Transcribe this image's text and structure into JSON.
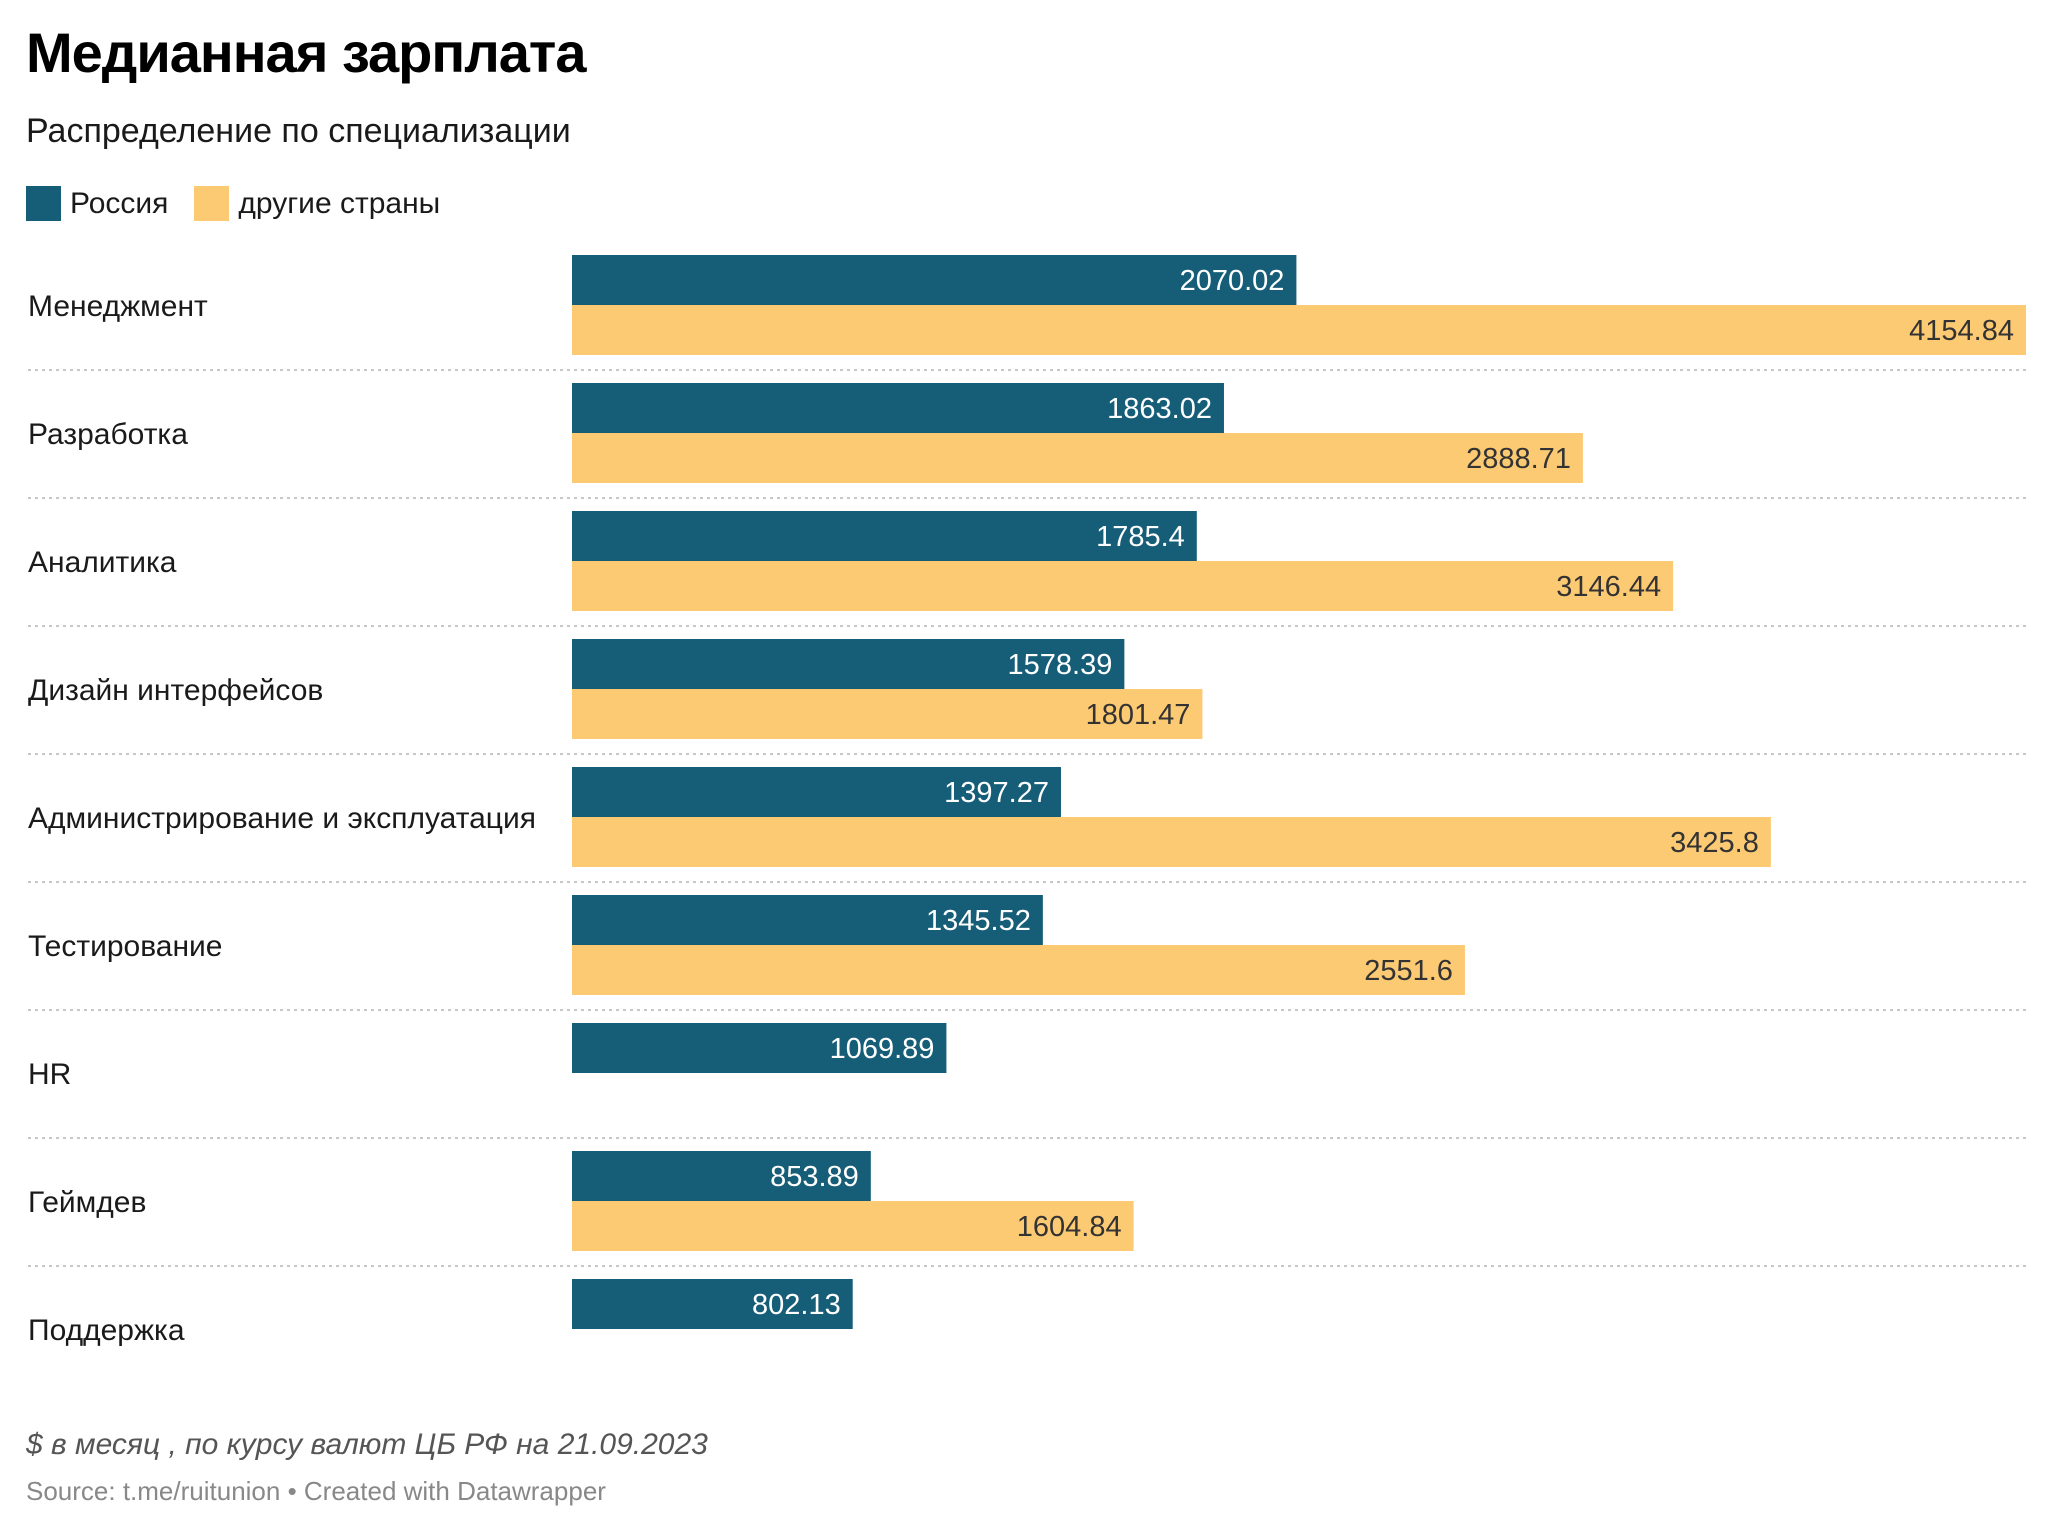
{
  "chart_data": {
    "type": "bar",
    "orientation": "horizontal",
    "title": "Медианная зарплата",
    "subtitle": "Распределение по специализации",
    "categories": [
      "Менеджмент",
      "Разработка",
      "Аналитика",
      "Дизайн интерфейсов",
      "Администрирование и эксплуатация",
      "Тестирование",
      "HR",
      "Геймдев",
      "Поддержка"
    ],
    "series": [
      {
        "name": "Россия",
        "color": "#165e78",
        "label_color": "#ffffff",
        "values": [
          2070.02,
          1863.02,
          1785.4,
          1578.39,
          1397.27,
          1345.52,
          1069.89,
          853.89,
          802.13
        ]
      },
      {
        "name": "другие страны",
        "color": "#fdca74",
        "label_color": "#333333",
        "values": [
          4154.84,
          2888.71,
          3146.44,
          1801.47,
          3425.8,
          2551.6,
          null,
          1604.84,
          null
        ]
      }
    ],
    "xlim": [
      0,
      4154.84
    ],
    "legend_position": "top-left",
    "grid": false,
    "note": "$ в месяц , по курсу валют ЦБ РФ на 21.09.2023",
    "source": "Source: t.me/ruitunion • Created with Datawrapper"
  }
}
